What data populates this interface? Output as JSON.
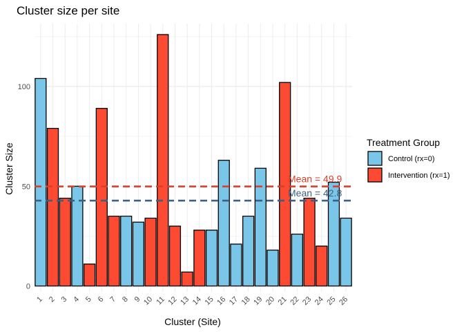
{
  "chart_data": {
    "type": "bar",
    "title": "Cluster size per site",
    "xlabel": "Cluster (Site)",
    "ylabel": "Cluster Size",
    "ylim": [
      0,
      130
    ],
    "yticks": [
      0,
      50,
      100
    ],
    "grid": true,
    "legend_position": "right",
    "legend_title": "Treatment Group",
    "categories": [
      "1",
      "2",
      "3",
      "4",
      "5",
      "6",
      "7",
      "8",
      "9",
      "10",
      "11",
      "12",
      "13",
      "14",
      "15",
      "16",
      "17",
      "18",
      "19",
      "20",
      "21",
      "22",
      "23",
      "24",
      "25",
      "26"
    ],
    "values": [
      104,
      79,
      44,
      50,
      11,
      89,
      35,
      35,
      32,
      34,
      126,
      30,
      7,
      28,
      28,
      63,
      21,
      35,
      59,
      18,
      102,
      26,
      44,
      20,
      52,
      34
    ],
    "groups": [
      "control",
      "intervention",
      "intervention",
      "control",
      "intervention",
      "intervention",
      "intervention",
      "control",
      "control",
      "intervention",
      "intervention",
      "intervention",
      "intervention",
      "intervention",
      "control",
      "control",
      "control",
      "control",
      "control",
      "control",
      "intervention",
      "control",
      "intervention",
      "intervention",
      "control",
      "control"
    ],
    "series": [
      {
        "key": "control",
        "name": "Control (rx=0)",
        "color": "#7ac6e8"
      },
      {
        "key": "intervention",
        "name": "Intervention (rx=1)",
        "color": "#fc4a33"
      }
    ],
    "reference_lines": [
      {
        "label": "Mean = 49.9",
        "value": 49.9,
        "color": "#d9402b"
      },
      {
        "label": "Mean = 42.8",
        "value": 42.8,
        "color": "#3d5f82"
      }
    ]
  }
}
